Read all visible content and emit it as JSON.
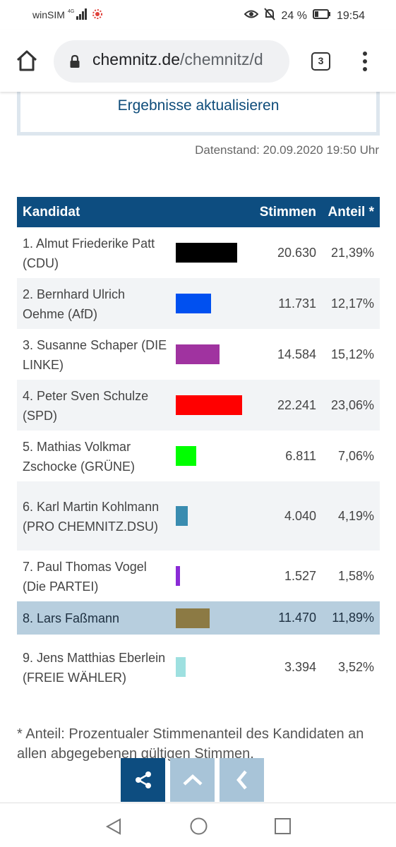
{
  "status": {
    "carrier": "winSIM",
    "network": "4G",
    "battery": "24 %",
    "time": "19:54"
  },
  "browser": {
    "url_host": "chemnitz.de",
    "url_path": "/chemnitz/d",
    "tab_count": "3"
  },
  "refresh_label": "Ergebnisse aktualisieren",
  "data_stand": "Datenstand: 20.09.2020 19:50 Uhr",
  "table": {
    "headers": {
      "candidate": "Kandidat",
      "votes": "Stimmen",
      "share": "Anteil *"
    },
    "rows": [
      {
        "name": "1. Almut Friederike Patt (CDU)",
        "votes": "20.630",
        "share": "21,39%",
        "share_value": 21.39,
        "color": "#000000"
      },
      {
        "name": "2. Bernhard Ulrich Oehme (AfD)",
        "votes": "11.731",
        "share": "12,17%",
        "share_value": 12.17,
        "color": "#0050f0"
      },
      {
        "name": "3. Susanne Schaper (DIE LINKE)",
        "votes": "14.584",
        "share": "15,12%",
        "share_value": 15.12,
        "color": "#a033a0"
      },
      {
        "name": "4. Peter Sven Schulze (SPD)",
        "votes": "22.241",
        "share": "23,06%",
        "share_value": 23.06,
        "color": "#ff0000"
      },
      {
        "name": "5. Mathias Volkmar Zschocke (GRÜNE)",
        "votes": "6.811",
        "share": "7,06%",
        "share_value": 7.06,
        "color": "#00ff00"
      },
      {
        "name": "6. Karl Martin Kohlmann (PRO CHEMNITZ.DSU)",
        "votes": "4.040",
        "share": "4,19%",
        "share_value": 4.19,
        "color": "#3a8cb0"
      },
      {
        "name": "7. Paul Thomas Vogel (Die PARTEI)",
        "votes": "1.527",
        "share": "1,58%",
        "share_value": 1.58,
        "color": "#8a2bd6"
      },
      {
        "name": "8. Lars Faßmann",
        "votes": "11.470",
        "share": "11,89%",
        "share_value": 11.89,
        "color": "#8c7a44"
      },
      {
        "name": "9. Jens Matthias Eberlein (FREIE WÄHLER)",
        "votes": "3.394",
        "share": "3,52%",
        "share_value": 3.52,
        "color": "#9ee0e0"
      }
    ]
  },
  "footnote": "* Anteil: Prozentualer Stimmenanteil des Kandidaten an allen abgegebenen gültigen Stimmen.",
  "icons": {
    "home": "home-icon",
    "lock": "lock-icon",
    "menu": "more-vert-icon",
    "share": "share-icon",
    "up": "chevron-up-icon",
    "back": "chevron-left-icon"
  }
}
